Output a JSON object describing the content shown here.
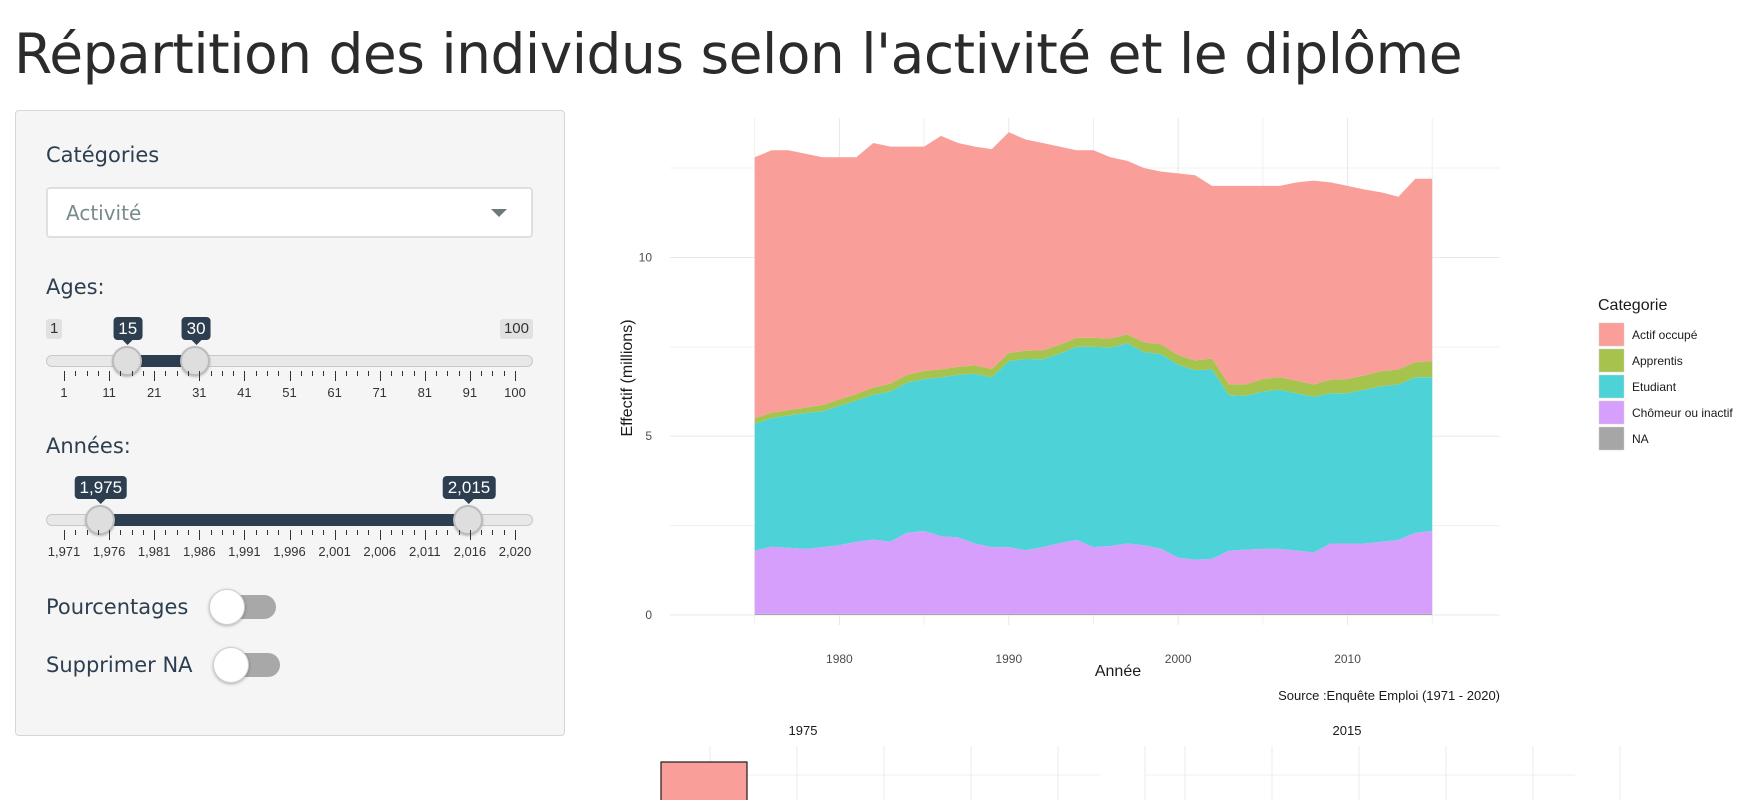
{
  "page": {
    "title": "Répartition des individus selon l'activité et le diplôme"
  },
  "sidebar": {
    "categories": {
      "label": "Catégories",
      "selected": "Activité"
    },
    "ages": {
      "label": "Ages:",
      "min_label": "1",
      "max_label": "100",
      "from": 15,
      "to": 30,
      "from_label": "15",
      "to_label": "30",
      "range": [
        1,
        100
      ],
      "tick_labels": [
        "1",
        "11",
        "21",
        "31",
        "41",
        "51",
        "61",
        "71",
        "81",
        "91",
        "100"
      ]
    },
    "years": {
      "label": "Années:",
      "from": 1975,
      "to": 2015,
      "from_label": "1,975",
      "to_label": "2,015",
      "range": [
        1971,
        2020
      ],
      "tick_labels": [
        "1,971",
        "1,976",
        "1,981",
        "1,986",
        "1,991",
        "1,996",
        "2,001",
        "2,006",
        "2,011",
        "2,016",
        "2,020"
      ]
    },
    "percentages": {
      "label": "Pourcentages",
      "checked": false
    },
    "remove_na": {
      "label": "Supprimer NA",
      "checked": false
    }
  },
  "chart_data": [
    {
      "type": "area",
      "stacked": true,
      "xlabel": "Année",
      "ylabel": "Effectif (millions)",
      "caption": "Source :Enquête Emploi (1971 - 2020)",
      "legend_title": "Categorie",
      "legend_position": "right",
      "xlim": [
        1970,
        2019
      ],
      "ylim": [
        0,
        13.9
      ],
      "x_ticks": [
        1980,
        1990,
        2000,
        2010
      ],
      "x_tick_labels": [
        "1980",
        "1990",
        "2000",
        "2010"
      ],
      "y_ticks": [
        0,
        5,
        10
      ],
      "y_tick_labels": [
        "0",
        "5",
        "10"
      ],
      "grid": true,
      "x": [
        1975,
        1976,
        1977,
        1978,
        1979,
        1980,
        1981,
        1982,
        1983,
        1984,
        1985,
        1986,
        1987,
        1988,
        1989,
        1990,
        1991,
        1992,
        1993,
        1994,
        1995,
        1996,
        1997,
        1998,
        1999,
        2000,
        2001,
        2002,
        2003,
        2004,
        2005,
        2006,
        2007,
        2008,
        2009,
        2010,
        2011,
        2012,
        2013,
        2014,
        2015
      ],
      "series": [
        {
          "name": "NA",
          "color": "#a6a6a6",
          "values": [
            0.03,
            0.03,
            0.03,
            0.03,
            0.03,
            0.03,
            0.03,
            0.03,
            0.03,
            0.03,
            0.03,
            0.03,
            0.03,
            0.03,
            0.03,
            0.03,
            0.03,
            0.03,
            0.03,
            0.03,
            0.03,
            0.03,
            0.03,
            0.03,
            0.03,
            0.03,
            0.03,
            0.03,
            0.03,
            0.03,
            0.03,
            0.03,
            0.03,
            0.03,
            0.03,
            0.03,
            0.03,
            0.03,
            0.03,
            0.03,
            0.03
          ]
        },
        {
          "name": "Chômeur ou inactif",
          "color": "#d79ffc",
          "values": [
            1.77,
            1.88,
            1.85,
            1.82,
            1.87,
            1.92,
            2.02,
            2.08,
            2.02,
            2.27,
            2.32,
            2.17,
            2.14,
            1.97,
            1.87,
            1.87,
            1.78,
            1.87,
            1.98,
            2.07,
            1.87,
            1.9,
            1.97,
            1.92,
            1.82,
            1.57,
            1.52,
            1.54,
            1.77,
            1.8,
            1.82,
            1.82,
            1.77,
            1.72,
            1.97,
            1.97,
            1.97,
            2.02,
            2.07,
            2.27,
            2.32
          ]
        },
        {
          "name": "Etudiant",
          "color": "#4dd3d7",
          "values": [
            3.55,
            3.6,
            3.7,
            3.8,
            3.8,
            3.9,
            3.95,
            4.05,
            4.2,
            4.2,
            4.25,
            4.45,
            4.55,
            4.75,
            4.75,
            5.2,
            5.35,
            5.25,
            5.3,
            5.4,
            5.6,
            5.55,
            5.6,
            5.4,
            5.45,
            5.4,
            5.3,
            5.3,
            4.35,
            4.3,
            4.4,
            4.45,
            4.4,
            4.35,
            4.2,
            4.2,
            4.3,
            4.35,
            4.35,
            4.35,
            4.3
          ]
        },
        {
          "name": "Apprentis",
          "color": "#a5c34d",
          "values": [
            0.15,
            0.15,
            0.15,
            0.15,
            0.17,
            0.18,
            0.18,
            0.2,
            0.22,
            0.22,
            0.22,
            0.22,
            0.22,
            0.23,
            0.23,
            0.23,
            0.23,
            0.25,
            0.25,
            0.25,
            0.25,
            0.25,
            0.25,
            0.27,
            0.27,
            0.27,
            0.27,
            0.3,
            0.3,
            0.32,
            0.35,
            0.35,
            0.35,
            0.35,
            0.38,
            0.4,
            0.4,
            0.42,
            0.42,
            0.42,
            0.45
          ]
        },
        {
          "name": "Actif occupé",
          "color": "#f99e98",
          "values": [
            7.3,
            7.34,
            7.27,
            7.1,
            6.93,
            6.77,
            6.62,
            6.84,
            6.63,
            6.38,
            6.28,
            6.53,
            6.26,
            6.12,
            6.15,
            6.17,
            5.91,
            5.8,
            5.54,
            5.25,
            5.25,
            5.07,
            4.85,
            4.88,
            4.83,
            5.08,
            5.18,
            4.83,
            5.55,
            5.55,
            5.4,
            5.35,
            5.55,
            5.7,
            5.52,
            5.4,
            5.2,
            5.0,
            4.83,
            5.13,
            5.1
          ]
        }
      ]
    },
    {
      "type": "bar",
      "facets": [
        "1975",
        "2015"
      ],
      "grid": true
    }
  ]
}
